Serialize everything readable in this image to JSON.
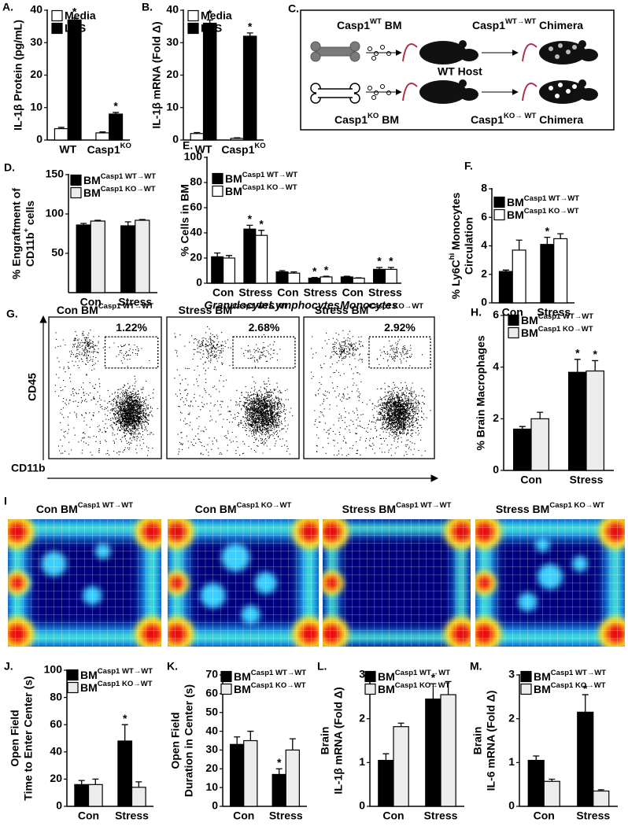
{
  "chart_data": [
    {
      "type": "bar",
      "panel": "A.",
      "ylabel": [
        "IL-1β Protein (pg/mL)"
      ],
      "categories": [
        "WT",
        [
          "Casp1",
          {
            "sup": "KO"
          }
        ]
      ],
      "series": [
        {
          "name": "Media",
          "color": "#ffffff",
          "values": [
            3.5,
            2.2
          ],
          "errors": [
            0.4,
            0.3
          ],
          "significance": [
            null,
            null
          ]
        },
        {
          "name": "LPS",
          "color": "#000000",
          "values": [
            37,
            8
          ],
          "errors": [
            0.6,
            0.5
          ],
          "significance": [
            "*",
            "*"
          ]
        }
      ],
      "ylim": [
        0,
        40
      ],
      "yticks": [
        0,
        10,
        20,
        30,
        40
      ]
    },
    {
      "type": "bar",
      "panel": "B.",
      "ylabel": [
        "IL-1β mRNA (Fold Δ)"
      ],
      "categories": [
        "WT",
        [
          "Casp1",
          {
            "sup": "KO"
          }
        ]
      ],
      "series": [
        {
          "name": "Media",
          "color": "#ffffff",
          "values": [
            2,
            0.5
          ],
          "errors": [
            0.3,
            0.2
          ],
          "significance": [
            null,
            null
          ]
        },
        {
          "name": "LPS",
          "color": "#000000",
          "values": [
            36,
            32
          ],
          "errors": [
            1,
            1
          ],
          "significance": [
            "*",
            "*"
          ]
        }
      ],
      "ylim": [
        0,
        40
      ],
      "yticks": [
        0,
        10,
        20,
        30,
        40
      ]
    },
    {
      "type": "bar",
      "panel": "D.",
      "ylabel": [
        "% Engraftment of",
        [
          "CD11b",
          {
            "sup": "+"
          },
          " cells"
        ]
      ],
      "categories": [
        "Con",
        "Stress"
      ],
      "series": [
        {
          "name": [
            "BM",
            {
              "sup": "Casp1 WT→WT"
            }
          ],
          "color": "#000000",
          "values": [
            86,
            85
          ],
          "errors": [
            2,
            5
          ],
          "significance": [
            null,
            null
          ]
        },
        {
          "name": [
            "BM",
            {
              "sup": "Casp1 KO→WT"
            }
          ],
          "color": "#ececec",
          "values": [
            91,
            92
          ],
          "errors": [
            1,
            1
          ],
          "significance": [
            null,
            null
          ]
        }
      ],
      "ylim": [
        0,
        150
      ],
      "yticks": [
        50,
        100,
        150
      ]
    },
    {
      "type": "bar",
      "panel": "E.",
      "ylabel": [
        "% Cells  in BM"
      ],
      "categories": [
        "Con",
        "Stress",
        "Con",
        "Stress",
        "Con",
        "Stress"
      ],
      "groups": [
        "Granulocytes",
        "Lymphocytes",
        "Monocytes"
      ],
      "series": [
        {
          "name": [
            "BM",
            {
              "sup": "Casp1 WT→WT"
            }
          ],
          "color": "#000000",
          "values": [
            21,
            43,
            9,
            4,
            5,
            11
          ],
          "errors": [
            3,
            3,
            1,
            0.5,
            0.5,
            1.5
          ],
          "significance": [
            null,
            "*",
            null,
            "*",
            null,
            "*"
          ]
        },
        {
          "name": [
            "BM",
            {
              "sup": "Casp1 KO→WT"
            }
          ],
          "color": "#ffffff",
          "values": [
            20,
            38,
            8,
            5,
            4,
            11
          ],
          "errors": [
            2,
            4,
            1,
            0.5,
            0.3,
            1.5
          ],
          "significance": [
            null,
            "*",
            null,
            "*",
            null,
            "*"
          ]
        }
      ],
      "ylim": [
        0,
        100
      ],
      "yticks": [
        0,
        20,
        40,
        60,
        80,
        100
      ]
    },
    {
      "type": "bar",
      "panel": "F.",
      "ylabel": [
        [
          "% Ly6C",
          {
            "sup": "hi"
          },
          " Monocytes"
        ],
        "Circulation"
      ],
      "categories": [
        "Con",
        "Stress"
      ],
      "series": [
        {
          "name": [
            "BM",
            {
              "sup": "Casp1 WT→WT"
            }
          ],
          "color": "#000000",
          "values": [
            2.2,
            4.1
          ],
          "errors": [
            0.1,
            0.5
          ],
          "significance": [
            null,
            "*"
          ]
        },
        {
          "name": [
            "BM",
            {
              "sup": "Casp1 KO→WT"
            }
          ],
          "color": "#ffffff",
          "values": [
            3.7,
            4.5
          ],
          "errors": [
            0.7,
            0.35
          ],
          "significance": [
            null,
            null
          ]
        }
      ],
      "ylim": [
        0,
        8
      ],
      "yticks": [
        0,
        2,
        4,
        6,
        8
      ]
    },
    {
      "type": "bar",
      "panel": "H.",
      "ylabel": [
        "% Brain Macrophages"
      ],
      "categories": [
        "Con",
        "Stress"
      ],
      "series": [
        {
          "name": [
            "BM",
            {
              "sup": "Casp1 WT→WT"
            }
          ],
          "color": "#000000",
          "values": [
            1.6,
            3.8
          ],
          "errors": [
            0.1,
            0.5
          ],
          "significance": [
            null,
            "*"
          ]
        },
        {
          "name": [
            "BM",
            {
              "sup": "Casp1 KO→WT"
            }
          ],
          "color": "#ececec",
          "values": [
            2.0,
            3.85
          ],
          "errors": [
            0.25,
            0.4
          ],
          "significance": [
            null,
            "*"
          ]
        }
      ],
      "ylim": [
        0,
        6
      ],
      "yticks": [
        0,
        2,
        4,
        6
      ]
    },
    {
      "type": "bar",
      "panel": "J.",
      "ylabel": [
        "Open Field",
        "Time  to Enter Center (s)"
      ],
      "categories": [
        "Con",
        "Stress"
      ],
      "series": [
        {
          "name": [
            "BM",
            {
              "sup": "Casp1 WT→WT"
            }
          ],
          "color": "#000000",
          "values": [
            16,
            48
          ],
          "errors": [
            3,
            12
          ],
          "significance": [
            null,
            "*"
          ]
        },
        {
          "name": [
            "BM",
            {
              "sup": "Casp1 KO→WT"
            }
          ],
          "color": "#ececec",
          "values": [
            16,
            14
          ],
          "errors": [
            4,
            4
          ],
          "significance": [
            null,
            null
          ]
        }
      ],
      "ylim": [
        0,
        100
      ],
      "yticks": [
        0,
        20,
        40,
        60,
        80,
        100
      ]
    },
    {
      "type": "bar",
      "panel": "K.",
      "ylabel": [
        "Open Field",
        "Duration in Center (s)"
      ],
      "categories": [
        "Con",
        "Stress"
      ],
      "series": [
        {
          "name": [
            "BM",
            {
              "sup": "Casp1 WT→WT"
            }
          ],
          "color": "#000000",
          "values": [
            33,
            17
          ],
          "errors": [
            4,
            3
          ],
          "significance": [
            null,
            "*"
          ]
        },
        {
          "name": [
            "BM",
            {
              "sup": "Casp1 KO→WT"
            }
          ],
          "color": "#ececec",
          "values": [
            35,
            30
          ],
          "errors": [
            5,
            6
          ],
          "significance": [
            null,
            null
          ]
        }
      ],
      "ylim": [
        0,
        70
      ],
      "yticks": [
        0,
        10,
        20,
        30,
        40,
        50,
        60,
        70
      ]
    },
    {
      "type": "bar",
      "panel": "L.",
      "ylabel": [
        "Brain",
        "IL-1β mRNA (Fold Δ)"
      ],
      "categories": [
        "Con",
        "Stress"
      ],
      "series": [
        {
          "name": [
            "BM",
            {
              "sup": "Casp1 WT→WT"
            }
          ],
          "color": "#000000",
          "values": [
            1.05,
            2.45
          ],
          "errors": [
            0.15,
            0.35
          ],
          "significance": [
            null,
            "*"
          ]
        },
        {
          "name": [
            "BM",
            {
              "sup": "Casp1 KO→WT"
            }
          ],
          "color": "#ececec",
          "values": [
            1.82,
            2.55
          ],
          "errors": [
            0.08,
            0.3
          ],
          "significance": [
            null,
            null
          ]
        }
      ],
      "ylim": [
        0,
        3
      ],
      "yticks": [
        0,
        1,
        2,
        3
      ]
    },
    {
      "type": "bar",
      "panel": "M.",
      "ylabel": [
        "Brain",
        "IL-6 mRNA (Fold Δ)"
      ],
      "categories": [
        "Con",
        "Stress"
      ],
      "series": [
        {
          "name": [
            "BM",
            {
              "sup": "Casp1 WT→WT"
            }
          ],
          "color": "#000000",
          "values": [
            1.05,
            2.15
          ],
          "errors": [
            0.1,
            0.4
          ],
          "significance": [
            null,
            "*"
          ]
        },
        {
          "name": [
            "BM",
            {
              "sup": "Casp1 KO→WT"
            }
          ],
          "color": "#ececec",
          "values": [
            0.57,
            0.35
          ],
          "errors": [
            0.05,
            0.03
          ],
          "significance": [
            null,
            null
          ]
        }
      ],
      "ylim": [
        0,
        3
      ],
      "yticks": [
        0,
        1,
        2,
        3
      ]
    }
  ],
  "diagram": {
    "label": "C.",
    "donor_wt": [
      "Casp1",
      {
        "sup": "WT"
      },
      " BM"
    ],
    "chimera_wt": [
      "Casp1",
      {
        "sup": "WT→WT"
      },
      " Chimera"
    ],
    "host": "WT Host",
    "donor_ko": [
      "Casp1",
      {
        "sup": "KO"
      },
      " BM"
    ],
    "chimera_ko": [
      "Casp1",
      {
        "sup": "KO→ WT"
      },
      " Chimera"
    ]
  },
  "flow": {
    "label": "G.",
    "y_axis": "CD45",
    "x_axis": "CD11b",
    "panels": [
      {
        "title": [
          "Con BM",
          {
            "sup": "Casp1 WT→WT"
          }
        ],
        "gate": {
          "value": 1.22,
          "label": "1.22%"
        }
      },
      {
        "title": [
          "Stress BM",
          {
            "sup": "Casp1 WT→WT"
          }
        ],
        "gate": {
          "value": 2.68,
          "label": "2.68%"
        }
      },
      {
        "title": [
          "Stress BM",
          {
            "sup": "Casp1 KO→WT"
          }
        ],
        "gate": {
          "value": 2.92,
          "label": "2.92%"
        }
      }
    ]
  },
  "heatmaps": {
    "label": "I",
    "panels": [
      [
        "Con BM",
        {
          "sup": "Casp1 WT→WT"
        }
      ],
      [
        "Con BM",
        {
          "sup": "Casp1 KO→WT"
        }
      ],
      [
        "Stress BM",
        {
          "sup": "Casp1 WT→WT"
        }
      ],
      [
        "Stress BM",
        {
          "sup": "Casp1 KO→WT"
        }
      ]
    ]
  }
}
